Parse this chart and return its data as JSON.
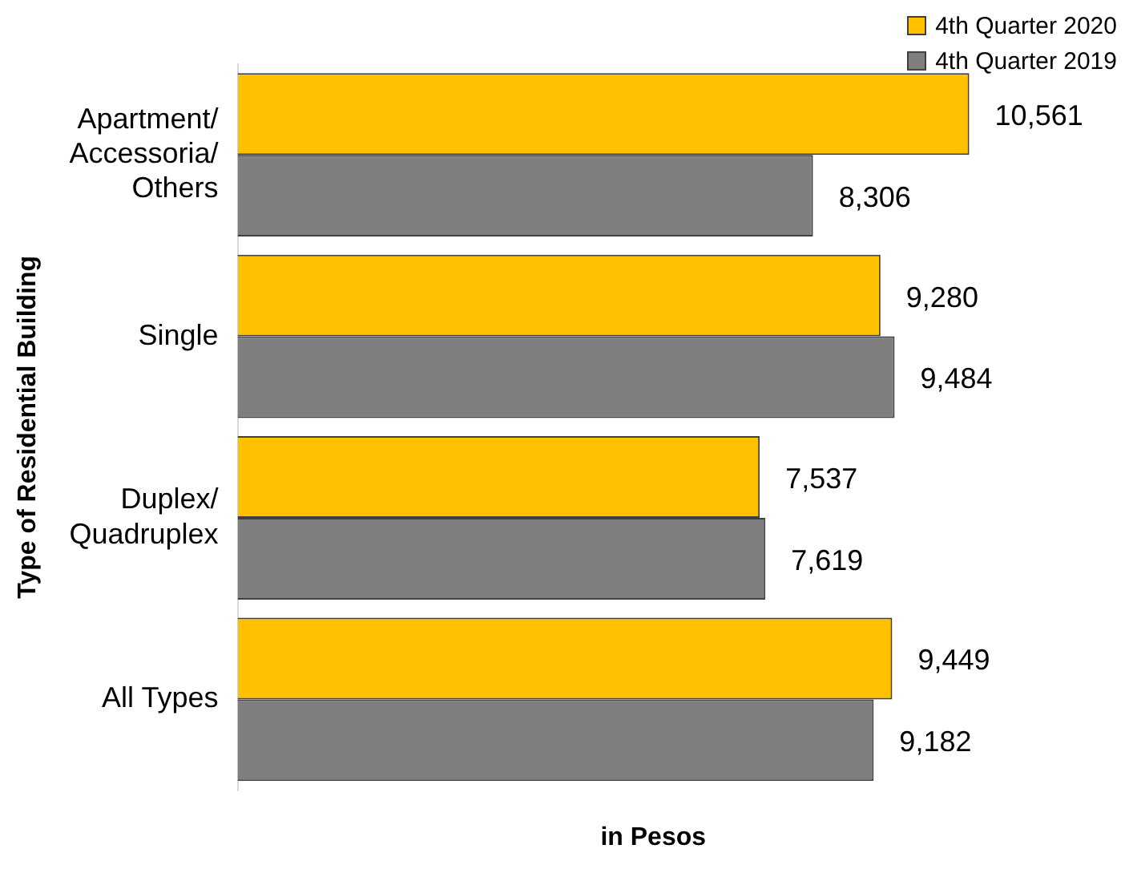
{
  "chart_data": {
    "type": "bar",
    "orientation": "horizontal",
    "xlabel": "in Pesos",
    "ylabel": "Type of Residential Building",
    "categories": [
      "Apartment/\nAccessoria/\nOthers",
      "Single",
      "Duplex/\nQuadruplex",
      "All Types"
    ],
    "series": [
      {
        "name": "4th Quarter 2020",
        "color": "#ffc000",
        "values": [
          10561,
          9280,
          7537,
          9449
        ],
        "value_labels": [
          "10,561",
          "9,280",
          "7,537",
          "9,449"
        ]
      },
      {
        "name": "4th Quarter 2019",
        "color": "#7f7f7f",
        "values": [
          8306,
          9484,
          7619,
          9182
        ],
        "value_labels": [
          "8,306",
          "9,484",
          "7,619",
          "9,182"
        ]
      }
    ],
    "tick_labels": "y",
    "grid": false,
    "legend": "top right"
  }
}
